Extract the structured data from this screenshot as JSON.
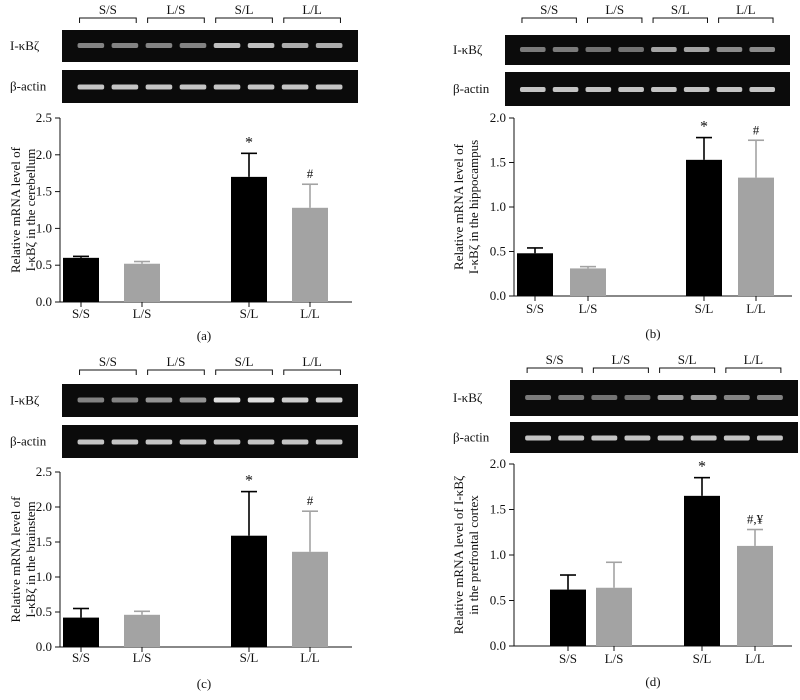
{
  "gel_labels": {
    "groups": [
      "S/S",
      "L/S",
      "S/L",
      "L/L"
    ],
    "target": "I-κBζ",
    "control": "β-actin"
  },
  "chart_data": [
    {
      "type": "bar",
      "panel": "(a)",
      "ylabel_lines": [
        "Relative mRNA level of",
        "I-κBζ in the cerebellum"
      ],
      "categories": [
        "S/S",
        "L/S",
        "S/L",
        "L/L"
      ],
      "values": [
        0.6,
        0.52,
        1.7,
        1.28
      ],
      "errors": [
        0.02,
        0.03,
        0.32,
        0.32
      ],
      "annotations": [
        "",
        "",
        "*",
        "#"
      ],
      "colors": [
        "#000000",
        "#a3a3a3",
        "#000000",
        "#a3a3a3"
      ],
      "ylim": [
        0,
        2.5
      ],
      "yticks": [
        "0.0",
        "0.5",
        "1.0",
        "1.5",
        "2.0",
        "2.5"
      ],
      "band_intensity": [
        0.4,
        0.4,
        0.75,
        0.65
      ]
    },
    {
      "type": "bar",
      "panel": "(b)",
      "ylabel_lines": [
        "Relative mRNA level of",
        "I-κBζ in the hippocampus"
      ],
      "categories": [
        "S/S",
        "L/S",
        "S/L",
        "L/L"
      ],
      "values": [
        0.48,
        0.31,
        1.53,
        1.33
      ],
      "errors": [
        0.06,
        0.02,
        0.25,
        0.42
      ],
      "annotations": [
        "",
        "",
        "*",
        "#"
      ],
      "colors": [
        "#000000",
        "#a3a3a3",
        "#000000",
        "#a3a3a3"
      ],
      "ylim": [
        0,
        2.0
      ],
      "yticks": [
        "0.0",
        "0.5",
        "1.0",
        "1.5",
        "2.0"
      ],
      "band_intensity": [
        0.35,
        0.3,
        0.6,
        0.45
      ]
    },
    {
      "type": "bar",
      "panel": "(c)",
      "ylabel_lines": [
        "Relative mRNA level of",
        "I-κBζ in the brainstem"
      ],
      "categories": [
        "S/S",
        "L/S",
        "S/L",
        "L/L"
      ],
      "values": [
        0.42,
        0.46,
        1.59,
        1.36
      ],
      "errors": [
        0.13,
        0.05,
        0.63,
        0.58
      ],
      "annotations": [
        "",
        "",
        "*",
        "#"
      ],
      "colors": [
        "#000000",
        "#a3a3a3",
        "#000000",
        "#a3a3a3"
      ],
      "ylim": [
        0,
        2.5
      ],
      "yticks": [
        "0.0",
        "0.5",
        "1.0",
        "1.5",
        "2.0",
        "2.5"
      ],
      "band_intensity": [
        0.4,
        0.5,
        0.95,
        0.85
      ]
    },
    {
      "type": "bar",
      "panel": "(d)",
      "ylabel_lines": [
        "Relative mRNA level of I-κBζ",
        "in the prefrontal cortex"
      ],
      "categories": [
        "S/S",
        "L/S",
        "S/L",
        "L/L"
      ],
      "values": [
        0.62,
        0.64,
        1.65,
        1.1
      ],
      "errors": [
        0.16,
        0.28,
        0.2,
        0.18
      ],
      "annotations": [
        "",
        "",
        "*",
        "#,¥"
      ],
      "colors": [
        "#000000",
        "#a3a3a3",
        "#000000",
        "#a3a3a3"
      ],
      "ylim": [
        0,
        2.0
      ],
      "yticks": [
        "0.0",
        "0.5",
        "1.0",
        "1.5",
        "2.0"
      ],
      "band_intensity": [
        0.35,
        0.3,
        0.55,
        0.4
      ]
    }
  ]
}
